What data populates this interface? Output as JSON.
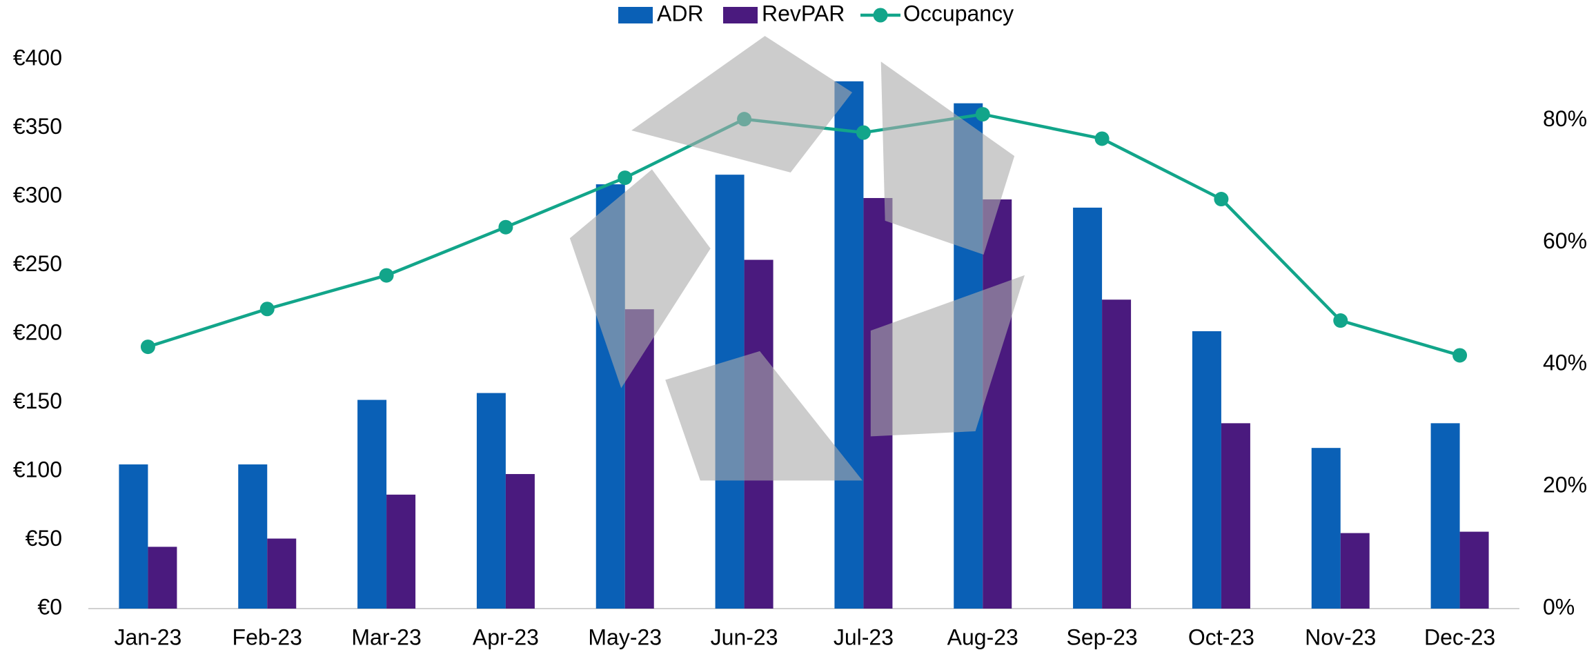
{
  "chart_data": {
    "type": "bar-line",
    "categories": [
      "Jan-23",
      "Feb-23",
      "Mar-23",
      "Apr-23",
      "May-23",
      "Jun-23",
      "Jul-23",
      "Aug-23",
      "Sep-23",
      "Oct-23",
      "Nov-23",
      "Dec-23"
    ],
    "series": [
      {
        "name": "ADR",
        "type": "bar",
        "color": "#0a60b6",
        "values": [
          105,
          105,
          152,
          157,
          309,
          316,
          384,
          368,
          292,
          202,
          117,
          135
        ]
      },
      {
        "name": "RevPAR",
        "type": "bar",
        "color": "#4a1a7e",
        "values": [
          45,
          51,
          83,
          98,
          218,
          254,
          299,
          298,
          225,
          135,
          55,
          56
        ]
      },
      {
        "name": "Occupancy",
        "type": "line",
        "axis": "y2",
        "color": "#12a58a",
        "values": [
          42.9,
          49.1,
          54.6,
          62.5,
          70.6,
          80.2,
          78.0,
          81.0,
          77.0,
          67.1,
          47.2,
          41.5
        ]
      }
    ],
    "ylim": [
      0,
      400
    ],
    "yticks": [
      {
        "value": 0,
        "label": "€0"
      },
      {
        "value": 50,
        "label": "€50"
      },
      {
        "value": 100,
        "label": "€100"
      },
      {
        "value": 150,
        "label": "€150"
      },
      {
        "value": 200,
        "label": "€200"
      },
      {
        "value": 250,
        "label": "€250"
      },
      {
        "value": 300,
        "label": "€300"
      },
      {
        "value": 350,
        "label": "€350"
      },
      {
        "value": 400,
        "label": "€400"
      }
    ],
    "y2lim": [
      0,
      90
    ],
    "y2ticks": [
      {
        "value": 0,
        "label": "0%"
      },
      {
        "value": 20,
        "label": "20%"
      },
      {
        "value": 40,
        "label": "40%"
      },
      {
        "value": 60,
        "label": "60%"
      },
      {
        "value": 80,
        "label": "80%"
      }
    ],
    "grid": false,
    "legend": "top"
  }
}
